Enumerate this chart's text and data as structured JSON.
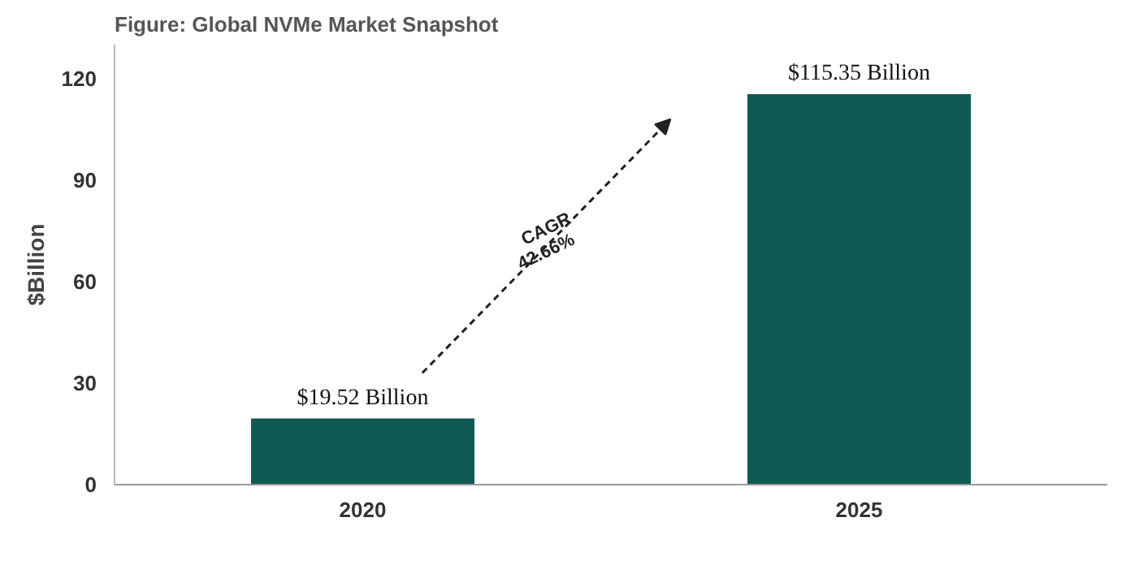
{
  "chart_data": {
    "type": "bar",
    "title": "Figure: Global NVMe Market Snapshot",
    "ylabel": "$Billion",
    "categories": [
      "2020",
      "2025"
    ],
    "values": [
      19.52,
      115.35
    ],
    "value_labels": [
      "$19.52 Billion",
      "$115.35 Billion"
    ],
    "color": "#0f5a52",
    "ylim": [
      0,
      130
    ],
    "yticks": [
      0,
      30,
      60,
      90,
      120
    ],
    "grid": false,
    "annotations": [
      "CAGR 42.66%"
    ]
  }
}
